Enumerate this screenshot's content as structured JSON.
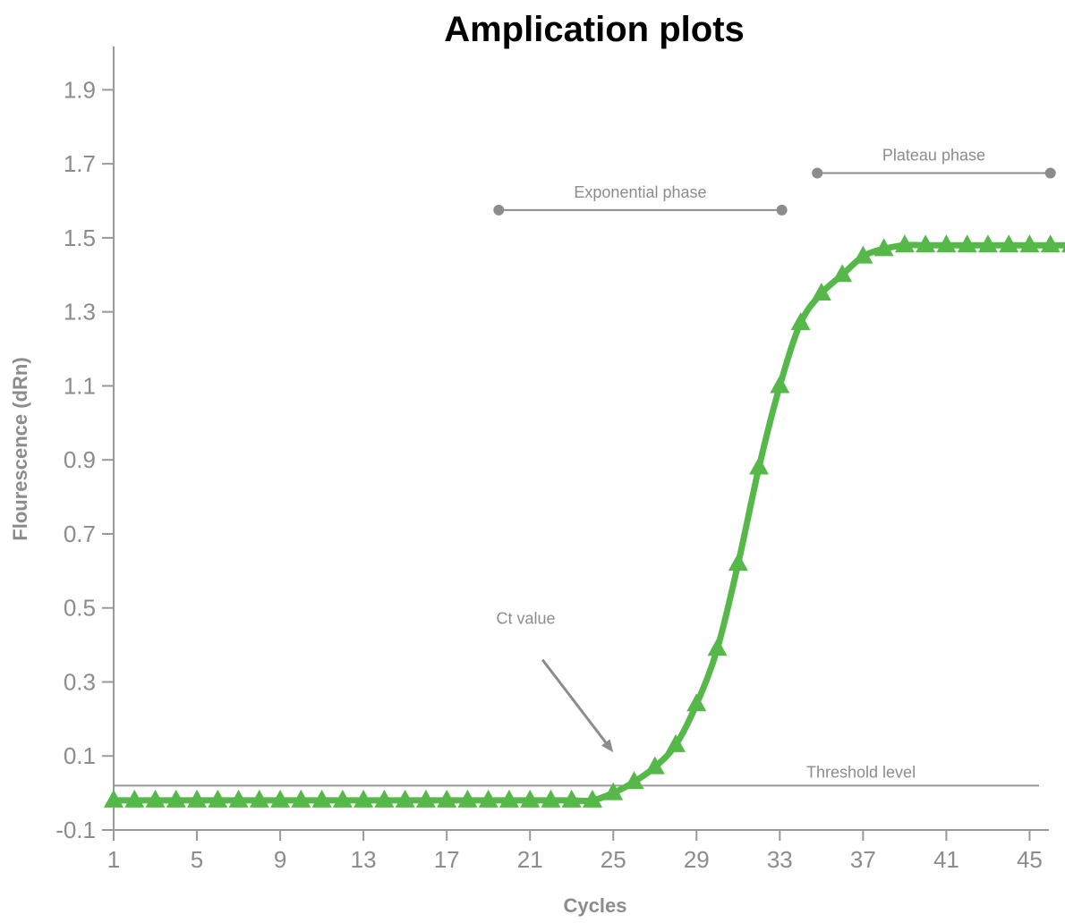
{
  "chart_data": {
    "type": "line",
    "title": "Amplication plots",
    "xlabel": "Cycles",
    "ylabel": "Flourescence (dRn)",
    "xlim": [
      1,
      47
    ],
    "ylim": [
      -0.1,
      2.0
    ],
    "x_ticks": [
      1,
      5,
      9,
      13,
      17,
      21,
      25,
      29,
      33,
      37,
      41,
      45
    ],
    "y_ticks": [
      -0.1,
      0.1,
      0.3,
      0.5,
      0.7,
      0.9,
      1.1,
      1.3,
      1.5,
      1.7,
      1.9
    ],
    "x_tick_labels": [
      "1",
      "5",
      "9",
      "13",
      "17",
      "21",
      "25",
      "29",
      "33",
      "37",
      "41",
      "45"
    ],
    "y_tick_labels": [
      "-0.1",
      "0.1",
      "0.3",
      "0.5",
      "0.7",
      "0.9",
      "1.1",
      "1.3",
      "1.5",
      "1.7",
      "1.9"
    ],
    "grid": false,
    "series": [
      {
        "x": [
          1,
          2,
          3,
          4,
          5,
          6,
          7,
          8,
          9,
          10,
          11,
          12,
          13,
          14,
          15,
          16,
          17,
          18,
          19,
          20,
          21,
          22,
          23,
          24,
          25,
          26,
          27,
          28,
          29,
          30,
          31,
          32,
          33,
          34,
          35,
          36,
          37,
          38,
          39,
          40,
          41,
          42,
          43,
          44,
          45,
          46,
          47
        ],
        "values": [
          -0.02,
          -0.02,
          -0.02,
          -0.02,
          -0.02,
          -0.02,
          -0.02,
          -0.02,
          -0.02,
          -0.02,
          -0.02,
          -0.02,
          -0.02,
          -0.02,
          -0.02,
          -0.02,
          -0.02,
          -0.02,
          -0.02,
          -0.02,
          -0.02,
          -0.02,
          -0.02,
          -0.02,
          0.0,
          0.03,
          0.07,
          0.13,
          0.24,
          0.39,
          0.62,
          0.88,
          1.1,
          1.27,
          1.35,
          1.4,
          1.45,
          1.47,
          1.48,
          1.48,
          1.48,
          1.48,
          1.48,
          1.48,
          1.48,
          1.48,
          1.48
        ],
        "color": "#55b848"
      }
    ],
    "threshold": {
      "label": "Threshold level",
      "value": 0.02
    },
    "annotations": {
      "exponential": {
        "label": "Exponential phase",
        "x_start": 19.5,
        "x_end": 33.1,
        "y": 1.575
      },
      "plateau": {
        "label": "Plateau phase",
        "x_start": 34.8,
        "x_end": 46.0,
        "y": 1.675
      },
      "ct": {
        "label": "Ct value",
        "arrow_from": [
          21.6,
          0.36
        ],
        "arrow_to": [
          25.0,
          0.11
        ]
      }
    }
  }
}
